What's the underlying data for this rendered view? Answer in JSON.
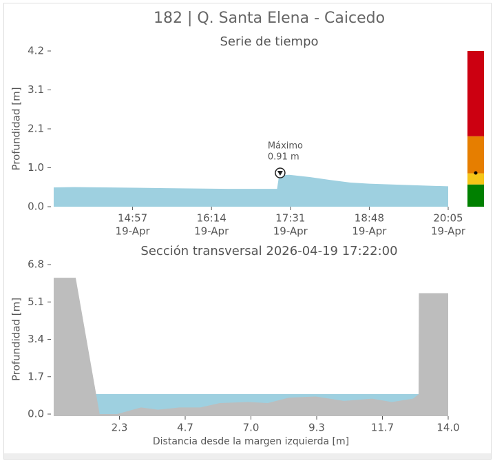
{
  "title": "182 | Q. Santa Elena - Caicedo",
  "chart_data": [
    {
      "type": "area",
      "title": "Serie de tiempo",
      "ylabel": "Profundidad [m]",
      "x": [
        "13:40",
        "14:00",
        "14:30",
        "15:00",
        "15:30",
        "16:00",
        "16:30",
        "17:00",
        "17:18",
        "17:20",
        "17:30",
        "17:50",
        "18:10",
        "18:30",
        "18:48",
        "19:10",
        "19:30",
        "20:05"
      ],
      "values": [
        0.52,
        0.53,
        0.52,
        0.51,
        0.5,
        0.49,
        0.48,
        0.48,
        0.48,
        0.85,
        0.86,
        0.8,
        0.72,
        0.65,
        0.62,
        0.6,
        0.58,
        0.55
      ],
      "color": "#9ed0e0",
      "xlim": [
        "13:40",
        "20:05"
      ],
      "xticks": [
        "14:57",
        "16:14",
        "17:31",
        "18:48",
        "20:05"
      ],
      "xtick_date": "19-Apr",
      "ylim": [
        0,
        4.2
      ],
      "yticks": [
        {
          "value": 0,
          "label": "0.0"
        },
        {
          "value": 1.05,
          "label": "1.0"
        },
        2.1,
        {
          "value": 3.15,
          "label": "3.1"
        },
        4.2
      ],
      "annotation": {
        "text": "Máximo",
        "x": "17:21",
        "value": 0.91,
        "label": "0.91 m"
      },
      "levels": [
        {
          "color": "#008000",
          "from": 0,
          "to": 0.6
        },
        {
          "color": "#f5c518",
          "from": 0.6,
          "to": 0.9
        },
        {
          "color": "#e67e00",
          "from": 0.9,
          "to": 1.9
        },
        {
          "color": "#cc0011",
          "from": 1.9,
          "to": 4.2
        }
      ]
    },
    {
      "type": "cross-section",
      "title": "Sección transversal 2026-04-19 17:22:00",
      "ylabel": "Profundidad [m]",
      "xlabel": "Distancia desde la margen izquierda [m]",
      "ground": {
        "color": "#bdbdbd",
        "x": [
          0,
          0.78,
          1.63,
          2.25,
          3.1,
          3.7,
          4.45,
          5.2,
          5.9,
          6.9,
          7.6,
          8.35,
          9.3,
          10.3,
          11.3,
          12.0,
          12.75,
          12.95,
          12.96,
          14.0
        ],
        "y": [
          6.2,
          6.2,
          0,
          0,
          0.3,
          0.2,
          0.3,
          0.3,
          0.5,
          0.55,
          0.5,
          0.75,
          0.8,
          0.6,
          0.7,
          0.55,
          0.7,
          0.9,
          5.5,
          5.5
        ]
      },
      "water": {
        "color": "#9ed0e0",
        "level": 0.91,
        "x": [
          1.5,
          12.95
        ]
      },
      "xlim": [
        0,
        14
      ],
      "xticks": [
        {
          "value": 2.3333,
          "label": "2.3"
        },
        {
          "value": 4.6667,
          "label": "4.7"
        },
        {
          "value": 7,
          "label": "7.0"
        },
        {
          "value": 9.3333,
          "label": "9.3"
        },
        {
          "value": 11.6667,
          "label": "11.7"
        },
        {
          "value": 14,
          "label": "14.0"
        }
      ],
      "ylim": [
        0,
        6.8
      ],
      "yticks": [
        {
          "value": 0,
          "label": "0.0"
        },
        1.7,
        3.4,
        5.1,
        6.8
      ]
    }
  ]
}
